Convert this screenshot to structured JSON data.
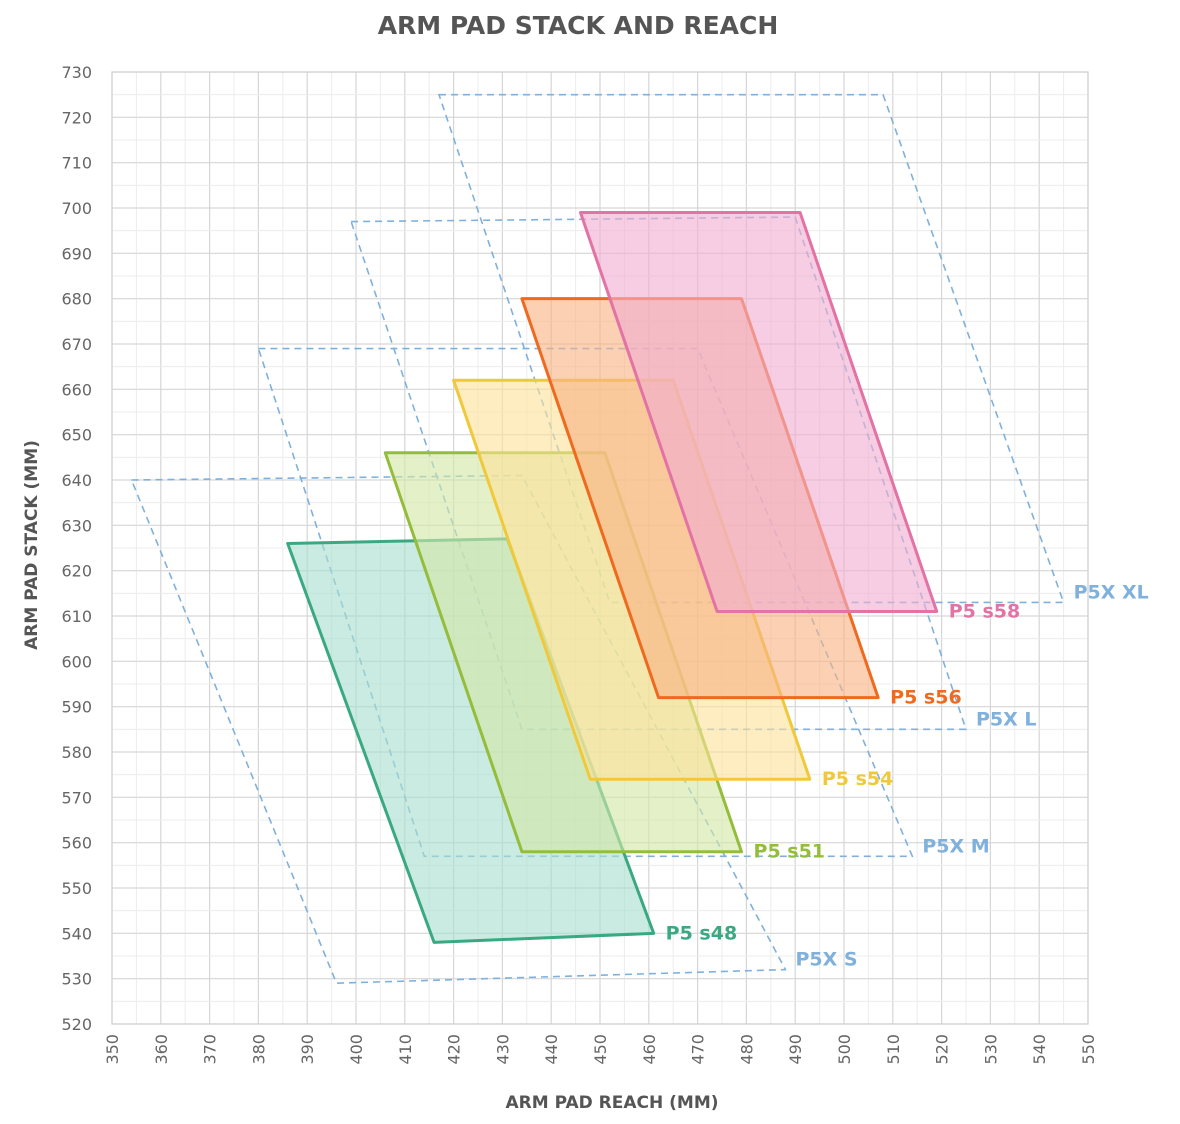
{
  "chart_data": {
    "type": "area",
    "title": "ARM PAD STACK AND REACH",
    "xlabel": "ARM PAD REACH (MM)",
    "ylabel": "ARM PAD STACK (MM)",
    "xlim": [
      350,
      550
    ],
    "ylim": [
      520,
      730
    ],
    "xticks": [
      "350",
      "360",
      "370",
      "380",
      "390",
      "400",
      "410",
      "420",
      "430",
      "440",
      "450",
      "460",
      "470",
      "480",
      "490",
      "500",
      "510",
      "520",
      "530",
      "540",
      "550"
    ],
    "yticks": [
      "520",
      "530",
      "540",
      "550",
      "560",
      "570",
      "580",
      "590",
      "600",
      "610",
      "620",
      "630",
      "640",
      "650",
      "660",
      "670",
      "680",
      "690",
      "700",
      "710",
      "720",
      "730"
    ],
    "grid": true,
    "series": [
      {
        "name": "P5X S",
        "style": "dashed",
        "color": "#7fb1dc",
        "points": [
          [
            354,
            640
          ],
          [
            434,
            641
          ],
          [
            488,
            532
          ],
          [
            396,
            529
          ]
        ]
      },
      {
        "name": "P5X M",
        "style": "dashed",
        "color": "#7fb1dc",
        "points": [
          [
            380,
            669
          ],
          [
            470,
            669
          ],
          [
            514,
            557
          ],
          [
            414,
            557
          ]
        ]
      },
      {
        "name": "P5X L",
        "style": "dashed",
        "color": "#7fb1dc",
        "points": [
          [
            399,
            697
          ],
          [
            490,
            698
          ],
          [
            525,
            585
          ],
          [
            434,
            585
          ]
        ]
      },
      {
        "name": "P5X XL",
        "style": "dashed",
        "color": "#7fb1dc",
        "points": [
          [
            417,
            725
          ],
          [
            508,
            725
          ],
          [
            545,
            613
          ],
          [
            452,
            613
          ]
        ]
      },
      {
        "name": "P5 s48",
        "style": "filled",
        "color": "#3aa982",
        "fill": "#aadecf",
        "points": [
          [
            386,
            626
          ],
          [
            431,
            627
          ],
          [
            461,
            540
          ],
          [
            416,
            538
          ]
        ]
      },
      {
        "name": "P5 s51",
        "style": "filled",
        "color": "#93bd3a",
        "fill": "#d3e6a6",
        "points": [
          [
            406,
            646
          ],
          [
            451,
            646
          ],
          [
            479,
            558
          ],
          [
            434,
            558
          ]
        ]
      },
      {
        "name": "P5 s54",
        "style": "filled",
        "color": "#f0c93a",
        "fill": "#fbe29a",
        "points": [
          [
            420,
            662
          ],
          [
            465,
            662
          ],
          [
            493,
            574
          ],
          [
            448,
            574
          ]
        ]
      },
      {
        "name": "P5 s56",
        "style": "filled",
        "color": "#ef6a1f",
        "fill": "#f9b385",
        "points": [
          [
            434,
            680
          ],
          [
            479,
            680
          ],
          [
            507,
            592
          ],
          [
            462,
            592
          ]
        ]
      },
      {
        "name": "P5 s58",
        "style": "filled",
        "color": "#e372a5",
        "fill": "#f1aed0",
        "points": [
          [
            446,
            699
          ],
          [
            491,
            699
          ],
          [
            519,
            611
          ],
          [
            474,
            611
          ]
        ]
      }
    ]
  }
}
